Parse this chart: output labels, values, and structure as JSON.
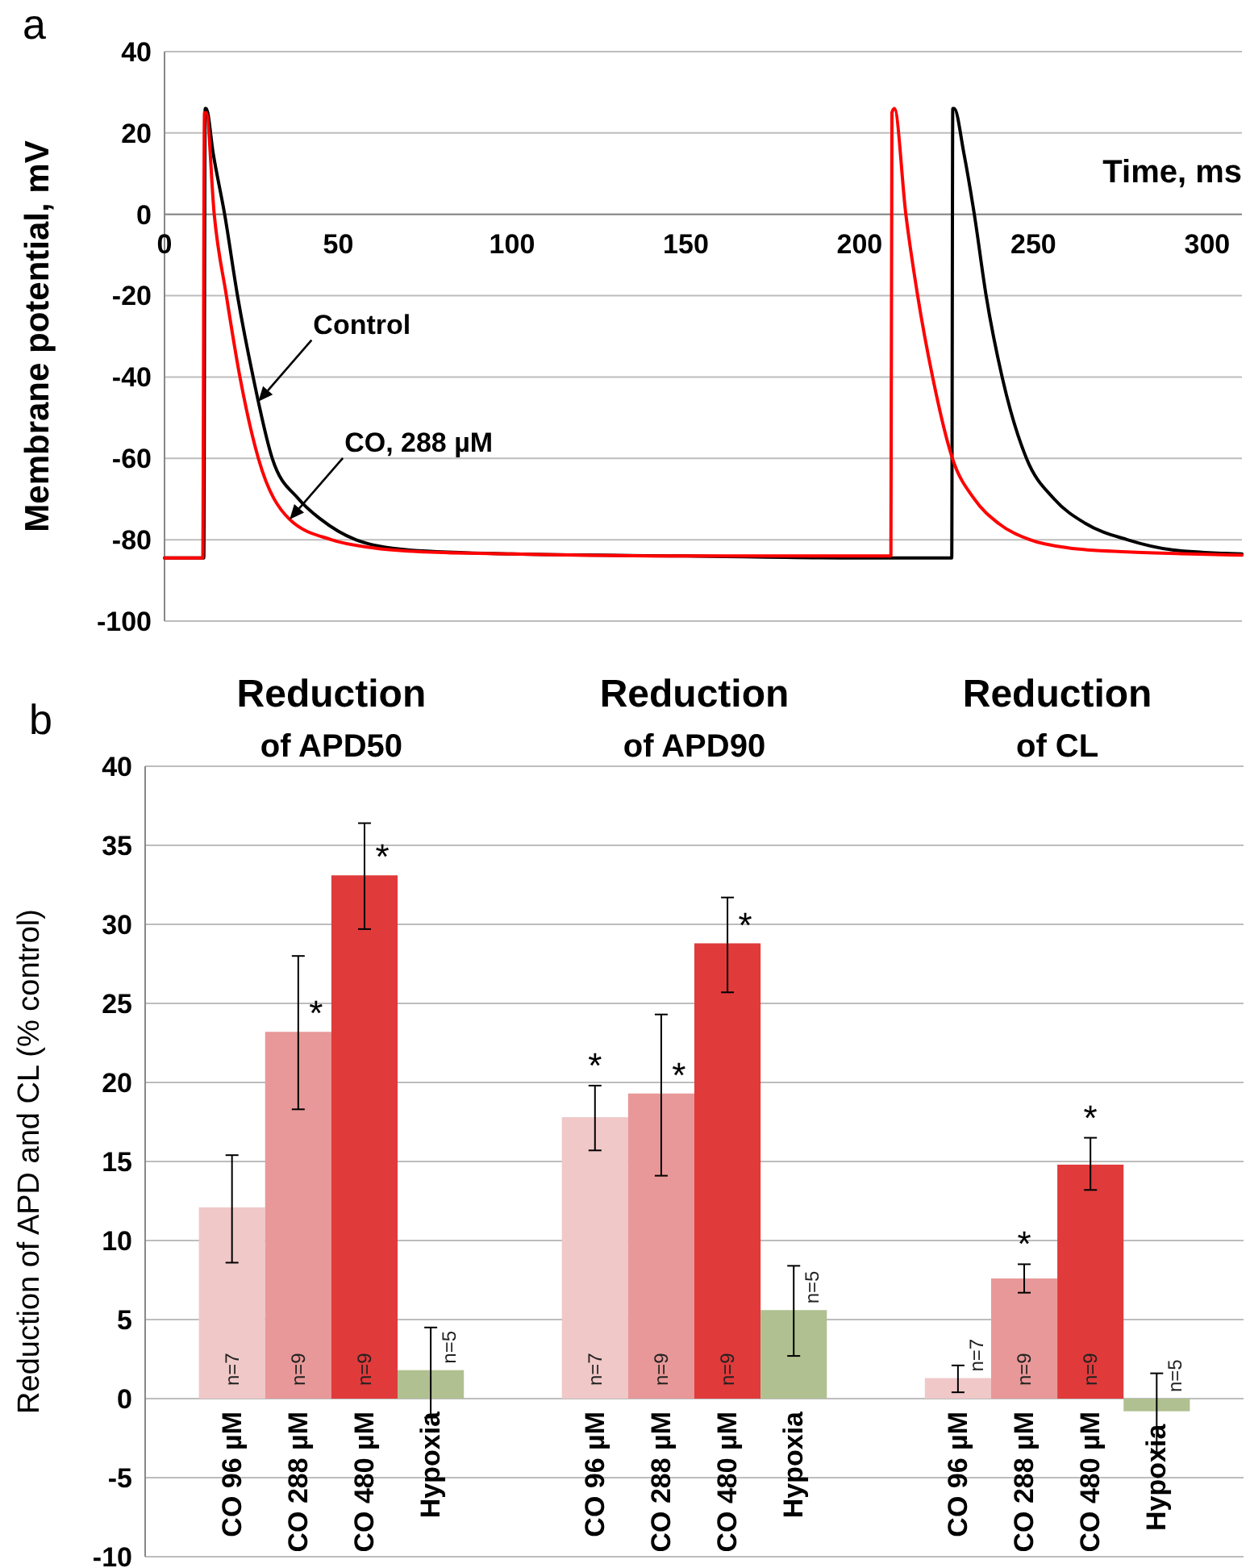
{
  "chart_data": [
    {
      "type": "line",
      "title": "a",
      "xlabel": "Time, ms",
      "ylabel": "Membrane potential, mV",
      "xlim": [
        0,
        310
      ],
      "xticks": [
        0,
        50,
        100,
        150,
        200,
        250,
        300
      ],
      "ylim": [
        -100,
        40
      ],
      "yticks": [
        -100,
        -80,
        -60,
        -40,
        -20,
        0,
        20,
        40
      ],
      "grid": "y",
      "marker": "none",
      "line_style": "solid",
      "series": [
        {
          "color": "#000000",
          "x": [
            0,
            11.3,
            11.7,
            12,
            14,
            17.3,
            21,
            25.5,
            31,
            38.6,
            45,
            55,
            70,
            100,
            150,
            200,
            226.5,
            226.8,
            227.2,
            230,
            233,
            236.4,
            241,
            248,
            256,
            265,
            277,
            290,
            310
          ],
          "values": [
            -84.5,
            -84.5,
            26,
            26,
            15,
            0,
            -20,
            -40,
            -60,
            -70,
            -75,
            -80,
            -82.5,
            -83.5,
            -84,
            -84.5,
            -84.5,
            26,
            26,
            15,
            0,
            -20,
            -40,
            -60,
            -70,
            -76,
            -80,
            -82.5,
            -83.5
          ]
        },
        {
          "color": "#ff0000",
          "x": [
            0,
            11,
            11.5,
            12,
            14.3,
            17.8,
            21.7,
            27,
            36,
            48,
            60,
            75,
            100,
            150,
            209,
            209.3,
            210,
            213.3,
            216.7,
            221,
            226.7,
            233,
            240,
            249,
            260,
            277,
            295,
            310
          ],
          "values": [
            -84.5,
            -84.5,
            25,
            25,
            0,
            -20,
            -40,
            -60,
            -75,
            -80,
            -82,
            -83,
            -83.5,
            -84,
            -84,
            25,
            26,
            0,
            -20,
            -40,
            -60,
            -70,
            -76,
            -80,
            -82,
            -83,
            -83.5,
            -83.8
          ]
        }
      ],
      "annotations": [
        {
          "text": "Control",
          "x": 27,
          "y": -46
        },
        {
          "text": "CO, 288 µM",
          "x": 36,
          "y": -75
        }
      ]
    },
    {
      "type": "bar",
      "title": "b",
      "ylabel": "Reduction of APD and CL (% control)",
      "categories": [
        "Reduction of APD50",
        "Reduction of APD90",
        "Reduction of CL"
      ],
      "ylim": [
        -10,
        40
      ],
      "yticks": [
        -10,
        -5,
        0,
        5,
        10,
        15,
        20,
        25,
        30,
        35,
        40
      ],
      "grid": "y",
      "series": [
        {
          "name": "CO 96 µM",
          "color": "#f0c8c8",
          "values": [
            12.1,
            17.8,
            1.3
          ],
          "errors": [
            [
              8.6,
              15.4
            ],
            [
              15.7,
              19.8
            ],
            [
              0.4,
              2.1
            ]
          ],
          "value_labels": [
            null,
            "*",
            null
          ]
        },
        {
          "name": "CO 288 µM",
          "color": "#e89898",
          "values": [
            23.2,
            19.3,
            7.6
          ],
          "errors": [
            [
              18.3,
              28.0
            ],
            [
              14.1,
              24.3
            ],
            [
              6.7,
              8.5
            ]
          ],
          "value_labels": [
            "*",
            "*",
            "*"
          ]
        },
        {
          "name": "CO 480 µM",
          "color": "#e03a3a",
          "values": [
            33.1,
            28.8,
            14.8
          ],
          "errors": [
            [
              29.7,
              36.4
            ],
            [
              25.7,
              31.7
            ],
            [
              13.2,
              16.5
            ]
          ],
          "value_labels": [
            "*",
            "*",
            "*"
          ]
        },
        {
          "name": "Hypoxia",
          "color": "#b0c090",
          "values": [
            1.8,
            5.6,
            -0.8
          ],
          "errors": [
            [
              -1.2,
              4.5
            ],
            [
              2.7,
              8.4
            ],
            [
              -3.4,
              1.6
            ]
          ]
        }
      ],
      "annotations": [
        "n=7",
        "n=9",
        "n=9",
        "n=5",
        "n=7",
        "n=9",
        "n=9",
        "n=5",
        "n=7",
        "n=9",
        "n=9",
        "n=5"
      ]
    }
  ]
}
